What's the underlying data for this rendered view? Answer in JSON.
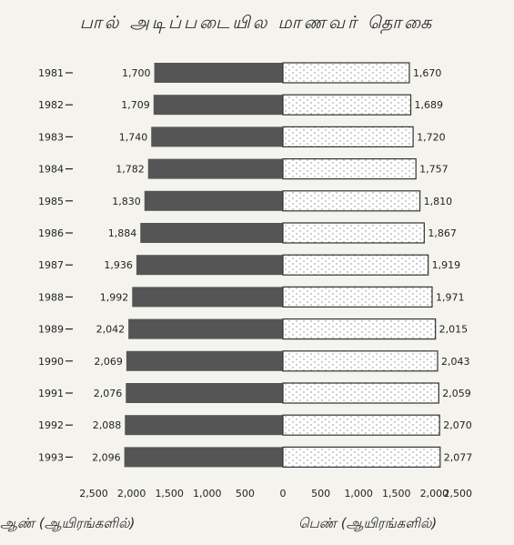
{
  "chart_data": {
    "type": "bar",
    "orientation": "horizontal-population-pyramid",
    "title": "பால் அடிப்படையில மாணவர் தொகை",
    "categories": [
      "1981",
      "1982",
      "1983",
      "1984",
      "1985",
      "1986",
      "1987",
      "1988",
      "1989",
      "1990",
      "1991",
      "1992",
      "1993"
    ],
    "series": [
      {
        "name": "ஆண் (ஆயிரங்களில்)",
        "side": "left",
        "color": "#555555",
        "values": [
          1700,
          1709,
          1740,
          1782,
          1830,
          1884,
          1936,
          1992,
          2042,
          2069,
          2076,
          2088,
          2096
        ],
        "labels": [
          "1,700",
          "1,709",
          "1,740",
          "1,782",
          "1,830",
          "1,884",
          "1,936",
          "1,992",
          "2,042",
          "2,069",
          "2,076",
          "2,088",
          "2,096"
        ]
      },
      {
        "name": "பெண் (ஆயிரங்களில்)",
        "side": "right",
        "color": "#ffffff",
        "values": [
          1670,
          1689,
          1720,
          1757,
          1810,
          1867,
          1919,
          1971,
          2015,
          2043,
          2059,
          2070,
          2077
        ],
        "labels": [
          "1,670",
          "1,689",
          "1,720",
          "1,757",
          "1,810",
          "1,867",
          "1,919",
          "1,971",
          "2,015",
          "2,043",
          "2,059",
          "2,070",
          "2,077"
        ]
      }
    ],
    "xlim": [
      -2500,
      2500
    ],
    "x_ticks": [
      "2,500",
      "2,000",
      "1,500",
      "1,000",
      "500",
      "0",
      "500",
      "1,000",
      "1,500",
      "2,000",
      "2,500"
    ],
    "left_axis_label": "ஆண் (ஆயிரங்களில்)",
    "right_axis_label": "பெண் (ஆயிரங்களில்)",
    "grid": false
  }
}
